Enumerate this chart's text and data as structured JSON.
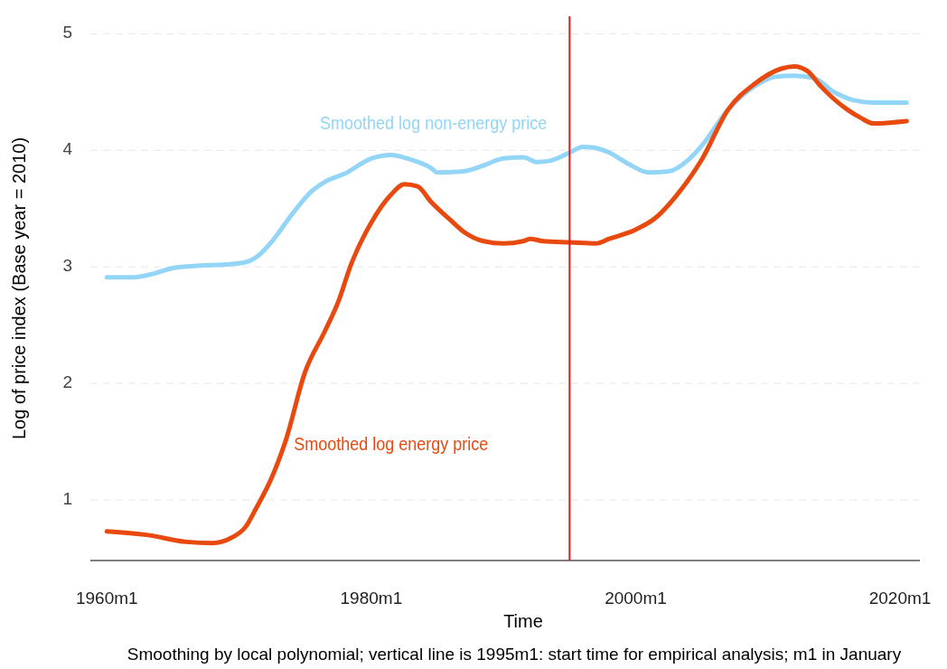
{
  "chart_data": {
    "type": "line",
    "xlabel": "Time",
    "ylabel": "Log of price index (Base year = 2010)",
    "xlim": [
      "1958-10",
      "2021-07"
    ],
    "ylim": [
      0.48,
      5.15
    ],
    "xticks": [
      {
        "value": "1960-01",
        "label": "1960m1"
      },
      {
        "value": "1980-01",
        "label": "1980m1"
      },
      {
        "value": "2000-01",
        "label": "2000m1"
      },
      {
        "value": "2020-01",
        "label": "2020m1"
      }
    ],
    "yticks": [
      1,
      2,
      3,
      4,
      5
    ],
    "grid": "y",
    "legend": false,
    "line_style": "solid",
    "marker": "none",
    "ref_lines": [
      {
        "axis": "x",
        "value": "1995-01",
        "color": "#e41a1c"
      }
    ],
    "annotations": [
      "Smoothing by local polynomial; vertical line is 1995m1: start time for empirical analysis; m1 in January"
    ],
    "series": [
      {
        "name": "Smoothed log non-energy price",
        "color": "#93d5f6",
        "x": [
          "1960-01",
          "1962-01",
          "1963-07",
          "1965-01",
          "1967-01",
          "1969-01",
          "1970-07",
          "1971-07",
          "1972-07",
          "1974-01",
          "1975-07",
          "1976-07",
          "1978-01",
          "1980-01",
          "1981-07",
          "1983-01",
          "1984-07",
          "1985-01",
          "1987-01",
          "1988-07",
          "1990-01",
          "1991-07",
          "1992-07",
          "1993-07",
          "1995-01",
          "1996-01",
          "1997-01",
          "1998-01",
          "1999-07",
          "2001-01",
          "2002-07",
          "2004-01",
          "2005-01",
          "2007-01",
          "2009-01",
          "2010-07",
          "2012-01",
          "2013-07",
          "2015-01",
          "2016-07",
          "2018-01",
          "2020-07"
        ],
        "values": [
          2.91,
          2.91,
          2.94,
          2.99,
          3.01,
          3.02,
          3.04,
          3.1,
          3.22,
          3.45,
          3.65,
          3.73,
          3.8,
          3.93,
          3.96,
          3.92,
          3.85,
          3.81,
          3.82,
          3.87,
          3.93,
          3.94,
          3.9,
          3.91,
          3.98,
          4.03,
          4.02,
          3.98,
          3.88,
          3.81,
          3.82,
          3.92,
          4.04,
          4.35,
          4.55,
          4.63,
          4.64,
          4.62,
          4.5,
          4.43,
          4.41,
          4.41
        ]
      },
      {
        "name": "Smoothed log energy price",
        "color": "#e8490f",
        "x": [
          "1960-01",
          "1963-01",
          "1966-01",
          "1968-01",
          "1969-07",
          "1970-07",
          "1971-04",
          "1972-07",
          "1973-07",
          "1975-01",
          "1976-07",
          "1977-07",
          "1978-07",
          "1980-01",
          "1981-07",
          "1982-07",
          "1983-07",
          "1984-07",
          "1986-01",
          "1987-01",
          "1988-07",
          "1990-01",
          "1991-07",
          "1992-01",
          "1993-01",
          "1995-01",
          "1997-01",
          "1998-01",
          "2000-01",
          "2001-07",
          "2003-01",
          "2005-01",
          "2007-01",
          "2009-01",
          "2011-01",
          "2012-01",
          "2013-01",
          "2014-01",
          "2016-01",
          "2017-01",
          "2018-01",
          "2020-07"
        ],
        "values": [
          0.73,
          0.7,
          0.64,
          0.63,
          0.68,
          0.77,
          0.92,
          1.2,
          1.5,
          2.1,
          2.45,
          2.7,
          3.03,
          3.38,
          3.62,
          3.71,
          3.69,
          3.56,
          3.4,
          3.3,
          3.22,
          3.2,
          3.22,
          3.24,
          3.22,
          3.21,
          3.2,
          3.24,
          3.32,
          3.42,
          3.6,
          3.92,
          4.35,
          4.57,
          4.7,
          4.72,
          4.68,
          4.55,
          4.35,
          4.28,
          4.23,
          4.25
        ]
      }
    ]
  }
}
